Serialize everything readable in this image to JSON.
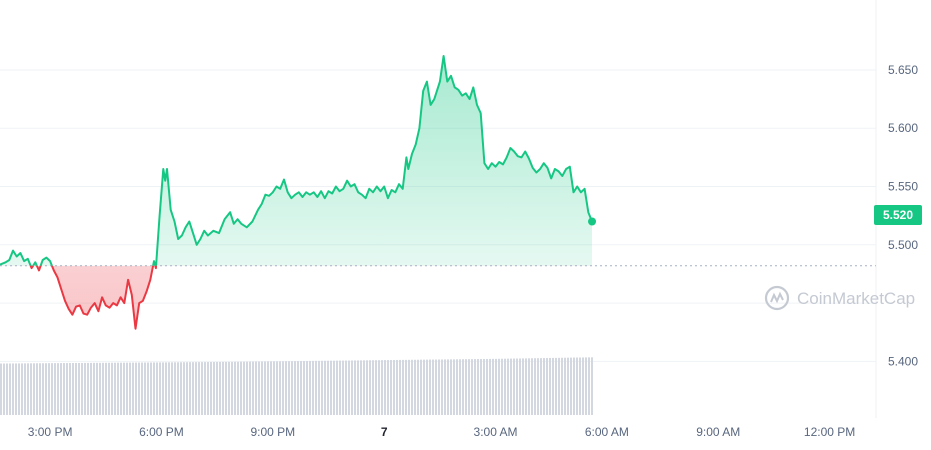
{
  "chart_data": {
    "type": "area",
    "title": "",
    "xlabel": "",
    "ylabel": "",
    "baseline": 5.482,
    "current_price_label": "5.520",
    "watermark": "CoinMarketCap",
    "x_tick_labels": [
      {
        "label": "3:00 PM",
        "x": 3
      },
      {
        "label": "6:00 PM",
        "x": 6
      },
      {
        "label": "9:00 PM",
        "x": 9
      },
      {
        "label": "7",
        "x": 12,
        "bold": true
      },
      {
        "label": "3:00 AM",
        "x": 15
      },
      {
        "label": "6:00 AM",
        "x": 18
      },
      {
        "label": "9:00 AM",
        "x": 21
      },
      {
        "label": "12:00 PM",
        "x": 24
      }
    ],
    "y_tick_labels": [
      "5.650",
      "5.600",
      "5.550",
      "5.500",
      "5.400"
    ],
    "y_ticks": [
      5.65,
      5.6,
      5.55,
      5.5,
      5.45,
      5.4
    ],
    "ylim": [
      5.36,
      5.71
    ],
    "xlim": [
      1.65,
      25.25
    ],
    "colors": {
      "up": "#16c784",
      "down": "#ea3943",
      "baseline": "#a6b0c3",
      "volume": "#d3d7e0",
      "grid": "#eff2f5"
    },
    "series": [
      {
        "values": [
          [
            1.65,
            5.483
          ],
          [
            1.8,
            5.485
          ],
          [
            1.9,
            5.487
          ],
          [
            2.0,
            5.495
          ],
          [
            2.1,
            5.49
          ],
          [
            2.2,
            5.493
          ],
          [
            2.3,
            5.486
          ],
          [
            2.4,
            5.488
          ],
          [
            2.5,
            5.48
          ],
          [
            2.6,
            5.485
          ],
          [
            2.7,
            5.478
          ],
          [
            2.8,
            5.487
          ],
          [
            2.9,
            5.489
          ],
          [
            3.0,
            5.486
          ],
          [
            3.1,
            5.478
          ],
          [
            3.2,
            5.472
          ],
          [
            3.3,
            5.462
          ],
          [
            3.4,
            5.452
          ],
          [
            3.5,
            5.445
          ],
          [
            3.6,
            5.44
          ],
          [
            3.7,
            5.447
          ],
          [
            3.8,
            5.448
          ],
          [
            3.9,
            5.441
          ],
          [
            4.0,
            5.44
          ],
          [
            4.1,
            5.446
          ],
          [
            4.2,
            5.45
          ],
          [
            4.3,
            5.443
          ],
          [
            4.4,
            5.455
          ],
          [
            4.5,
            5.448
          ],
          [
            4.6,
            5.446
          ],
          [
            4.7,
            5.45
          ],
          [
            4.8,
            5.448
          ],
          [
            4.9,
            5.455
          ],
          [
            5.0,
            5.45
          ],
          [
            5.1,
            5.47
          ],
          [
            5.2,
            5.457
          ],
          [
            5.3,
            5.428
          ],
          [
            5.4,
            5.45
          ],
          [
            5.5,
            5.452
          ],
          [
            5.6,
            5.46
          ],
          [
            5.7,
            5.47
          ],
          [
            5.8,
            5.486
          ],
          [
            5.85,
            5.48
          ],
          [
            5.95,
            5.525
          ],
          [
            6.05,
            5.565
          ],
          [
            6.1,
            5.555
          ],
          [
            6.15,
            5.565
          ],
          [
            6.25,
            5.53
          ],
          [
            6.35,
            5.52
          ],
          [
            6.45,
            5.505
          ],
          [
            6.55,
            5.508
          ],
          [
            6.65,
            5.515
          ],
          [
            6.75,
            5.52
          ],
          [
            6.85,
            5.51
          ],
          [
            6.95,
            5.5
          ],
          [
            7.05,
            5.505
          ],
          [
            7.15,
            5.512
          ],
          [
            7.25,
            5.508
          ],
          [
            7.4,
            5.512
          ],
          [
            7.55,
            5.51
          ],
          [
            7.7,
            5.522
          ],
          [
            7.85,
            5.528
          ],
          [
            7.95,
            5.518
          ],
          [
            8.05,
            5.522
          ],
          [
            8.15,
            5.518
          ],
          [
            8.3,
            5.515
          ],
          [
            8.45,
            5.52
          ],
          [
            8.6,
            5.53
          ],
          [
            8.7,
            5.535
          ],
          [
            8.8,
            5.543
          ],
          [
            8.9,
            5.542
          ],
          [
            9.0,
            5.545
          ],
          [
            9.1,
            5.55
          ],
          [
            9.2,
            5.548
          ],
          [
            9.3,
            5.556
          ],
          [
            9.4,
            5.545
          ],
          [
            9.5,
            5.54
          ],
          [
            9.6,
            5.543
          ],
          [
            9.7,
            5.545
          ],
          [
            9.8,
            5.541
          ],
          [
            9.9,
            5.545
          ],
          [
            10.0,
            5.543
          ],
          [
            10.1,
            5.545
          ],
          [
            10.2,
            5.541
          ],
          [
            10.3,
            5.546
          ],
          [
            10.4,
            5.54
          ],
          [
            10.5,
            5.546
          ],
          [
            10.6,
            5.544
          ],
          [
            10.7,
            5.55
          ],
          [
            10.8,
            5.546
          ],
          [
            10.9,
            5.548
          ],
          [
            11.0,
            5.555
          ],
          [
            11.1,
            5.55
          ],
          [
            11.2,
            5.552
          ],
          [
            11.3,
            5.545
          ],
          [
            11.4,
            5.543
          ],
          [
            11.5,
            5.54
          ],
          [
            11.6,
            5.548
          ],
          [
            11.7,
            5.545
          ],
          [
            11.8,
            5.55
          ],
          [
            11.9,
            5.546
          ],
          [
            12.0,
            5.55
          ],
          [
            12.1,
            5.54
          ],
          [
            12.2,
            5.547
          ],
          [
            12.3,
            5.545
          ],
          [
            12.4,
            5.552
          ],
          [
            12.5,
            5.548
          ],
          [
            12.6,
            5.575
          ],
          [
            12.65,
            5.565
          ],
          [
            12.75,
            5.578
          ],
          [
            12.85,
            5.586
          ],
          [
            12.95,
            5.6
          ],
          [
            13.05,
            5.632
          ],
          [
            13.15,
            5.64
          ],
          [
            13.25,
            5.62
          ],
          [
            13.35,
            5.625
          ],
          [
            13.5,
            5.64
          ],
          [
            13.6,
            5.662
          ],
          [
            13.7,
            5.64
          ],
          [
            13.8,
            5.645
          ],
          [
            13.9,
            5.635
          ],
          [
            14.0,
            5.633
          ],
          [
            14.1,
            5.628
          ],
          [
            14.2,
            5.63
          ],
          [
            14.3,
            5.625
          ],
          [
            14.4,
            5.635
          ],
          [
            14.5,
            5.62
          ],
          [
            14.6,
            5.613
          ],
          [
            14.7,
            5.57
          ],
          [
            14.8,
            5.565
          ],
          [
            14.9,
            5.57
          ],
          [
            15.0,
            5.567
          ],
          [
            15.1,
            5.571
          ],
          [
            15.2,
            5.569
          ],
          [
            15.3,
            5.575
          ],
          [
            15.4,
            5.583
          ],
          [
            15.5,
            5.58
          ],
          [
            15.6,
            5.576
          ],
          [
            15.7,
            5.575
          ],
          [
            15.8,
            5.58
          ],
          [
            15.9,
            5.574
          ],
          [
            16.0,
            5.566
          ],
          [
            16.1,
            5.562
          ],
          [
            16.2,
            5.565
          ],
          [
            16.3,
            5.57
          ],
          [
            16.4,
            5.566
          ],
          [
            16.5,
            5.557
          ],
          [
            16.6,
            5.565
          ],
          [
            16.7,
            5.563
          ],
          [
            16.8,
            5.559
          ],
          [
            16.9,
            5.565
          ],
          [
            17.0,
            5.567
          ],
          [
            17.1,
            5.545
          ],
          [
            17.2,
            5.55
          ],
          [
            17.3,
            5.545
          ],
          [
            17.4,
            5.548
          ],
          [
            17.5,
            5.528
          ],
          [
            17.6,
            5.52
          ]
        ]
      }
    ],
    "volume_x": [
      1.65,
      7.55,
      15.0,
      17.6
    ],
    "volume_level": [
      0.33,
      0.34,
      0.36,
      0.37
    ]
  }
}
